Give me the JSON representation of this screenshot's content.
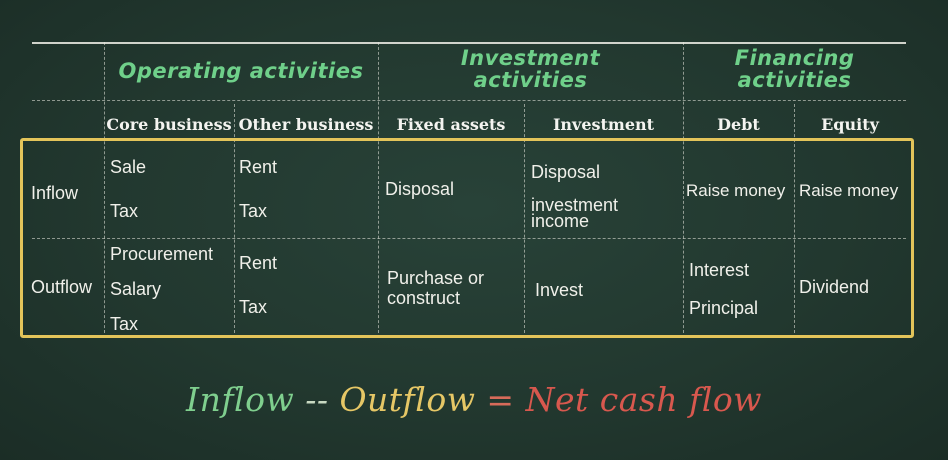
{
  "groups": {
    "operating": "Operating activities",
    "investment_line1": "Investment",
    "investment_line2": "activities",
    "financing_line1": "Financing",
    "financing_line2": "activities"
  },
  "columns": {
    "core_business": "Core business",
    "other_business": "Other business",
    "fixed_assets": "Fixed assets",
    "investment": "Investment",
    "debt": "Debt",
    "equity": "Equity"
  },
  "rows": {
    "inflow": {
      "label": "Inflow",
      "core_business": [
        "Sale",
        "Tax"
      ],
      "other_business": [
        "Rent",
        "Tax"
      ],
      "fixed_assets": [
        "Disposal"
      ],
      "investment": [
        "Disposal",
        "investment",
        "income"
      ],
      "debt": [
        "Raise money"
      ],
      "equity": [
        "Raise money"
      ]
    },
    "outflow": {
      "label": "Outflow",
      "core_business": [
        "Procurement",
        "Salary",
        "Tax"
      ],
      "other_business": [
        "Rent",
        "Tax"
      ],
      "fixed_assets": [
        "Purchase or",
        "construct"
      ],
      "investment": [
        "Invest"
      ],
      "debt": [
        "Interest",
        "Principal"
      ],
      "equity": [
        "Dividend"
      ]
    }
  },
  "formula": {
    "inflow": "Inflow",
    "minus": " -- ",
    "outflow": "Outflow",
    "equals": " = ",
    "net": "Net cash flow"
  },
  "colors": {
    "board": "#22362e",
    "group_title": "#6fd08a",
    "frame": "#e3c45a",
    "formula_inflow": "#7fcf8e",
    "formula_outflow": "#e6c766",
    "formula_net": "#d8584e"
  }
}
